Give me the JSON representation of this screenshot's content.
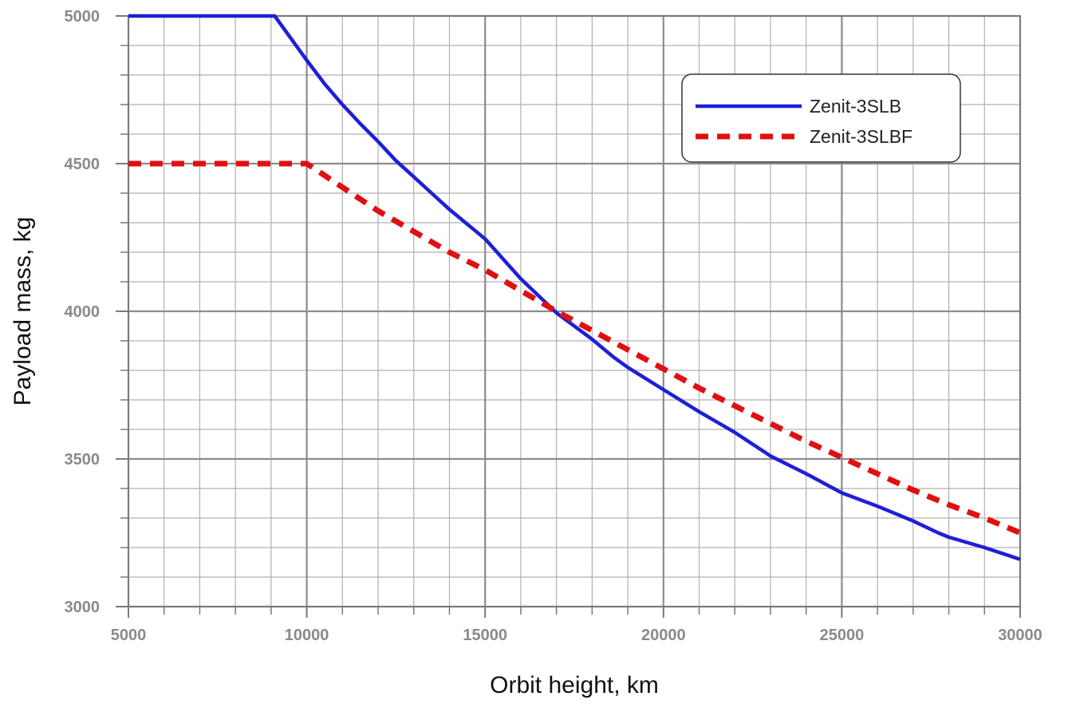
{
  "chart_data": {
    "type": "line",
    "title": "",
    "xlabel": "Orbit height, km",
    "ylabel": "Payload mass, kg",
    "xlim": [
      5000,
      30000
    ],
    "ylim": [
      3000,
      5000
    ],
    "x_ticks": [
      5000,
      10000,
      15000,
      20000,
      25000,
      30000
    ],
    "y_ticks": [
      3000,
      3500,
      4000,
      4500,
      5000
    ],
    "x_ticks_labels": [
      "5000",
      "10000",
      "15000",
      "20000",
      "25000",
      "30000"
    ],
    "y_ticks_labels": [
      "3000",
      "3500",
      "4000",
      "4500",
      "5000"
    ],
    "x_minor_step": 1000,
    "y_minor_step": 100,
    "grid": true,
    "legend_position": "top-right",
    "series": [
      {
        "name": "Zenit-3SLB",
        "color": "#1f1fd6",
        "style": "solid",
        "x": [
          5000,
          9100,
          10000,
          10500,
          11000,
          11500,
          12000,
          12500,
          13000,
          13500,
          14000,
          15000,
          16000,
          17000,
          18000,
          18600,
          19000,
          20000,
          21000,
          22000,
          23000,
          24000,
          25000,
          26000,
          27000,
          27700,
          28000,
          29000,
          30000
        ],
        "y": [
          5000,
          5000,
          4850,
          4770,
          4700,
          4635,
          4575,
          4510,
          4455,
          4400,
          4345,
          4245,
          4110,
          3995,
          3905,
          3845,
          3810,
          3735,
          3660,
          3590,
          3510,
          3450,
          3385,
          3340,
          3290,
          3250,
          3235,
          3200,
          3160
        ]
      },
      {
        "name": "Zenit-3SLBF",
        "color": "#e01010",
        "style": "dashed",
        "x": [
          5000,
          9000,
          10000,
          11000,
          12000,
          13000,
          14000,
          15000,
          16000,
          17000,
          18000,
          19000,
          20000,
          21000,
          22000,
          23000,
          24000,
          25000,
          26000,
          27000,
          28000,
          29000,
          30000
        ],
        "y": [
          4500,
          4500,
          4500,
          4420,
          4340,
          4270,
          4200,
          4140,
          4070,
          4000,
          3935,
          3870,
          3805,
          3740,
          3680,
          3620,
          3560,
          3505,
          3450,
          3395,
          3345,
          3300,
          3250
        ]
      }
    ]
  }
}
